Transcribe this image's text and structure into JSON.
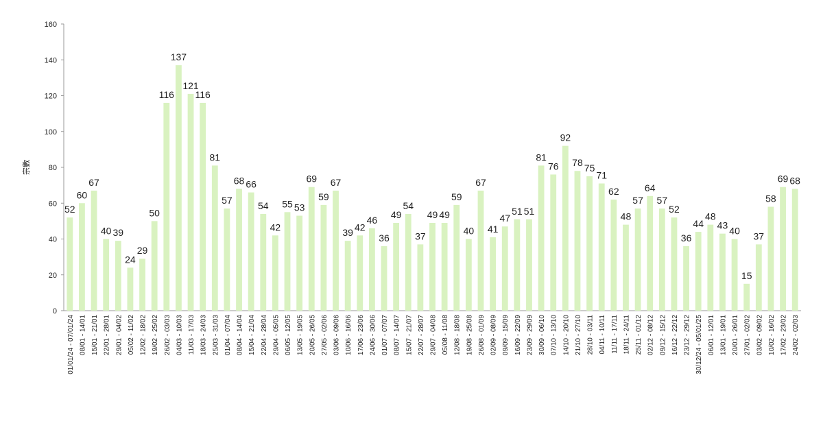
{
  "chart_data": {
    "type": "bar",
    "y_label": "宗數",
    "categories": [
      "01/01/24 - 07/01/24",
      "08/01 - 14/01",
      "15/01 - 21/01",
      "22/01 - 28/01",
      "29/01 - 04/02",
      "05/02 - 11/02",
      "12/02 - 18/02",
      "19/02 - 25/02",
      "26/02 - 03/03",
      "04/03 - 10/03",
      "11/03 - 17/03",
      "18/03 - 24/03",
      "25/03 - 31/03",
      "01/04 - 07/04",
      "08/04 - 14/04",
      "15/04 - 21/04",
      "22/04 - 28/04",
      "29/04 - 05/05",
      "06/05 - 12/05",
      "13/05 - 19/05",
      "20/05 - 26/05",
      "27/05 - 02/06",
      "03/06 - 09/06",
      "10/06 - 16/06",
      "17/06 - 23/06",
      "24/06 - 30/06",
      "01/07 - 07/07",
      "08/07 - 14/07",
      "15/07 - 21/07",
      "22/07 - 28/07",
      "29/07 - 04/08",
      "05/08 - 11/08",
      "12/08 - 18/08",
      "19/08 - 25/08",
      "26/08 - 01/09",
      "02/09 - 08/09",
      "09/09 - 15/09",
      "16/09 - 22/09",
      "23/09 - 29/09",
      "30/09 - 06/10",
      "07/10 - 13/10",
      "14/10 - 20/10",
      "21/10 - 27/10",
      "28/10 - 03/11",
      "04/11 - 10/11",
      "11/11 - 17/11",
      "18/11 - 24/11",
      "25/11 - 01/12",
      "02/12 - 08/12",
      "09/12 - 15/12",
      "16/12 - 22/12",
      "23/12 - 29/12",
      "30/12/24 - 05/01/25",
      "06/01 - 12/01",
      "13/01 - 19/01",
      "20/01 - 26/01",
      "27/01 - 02/02",
      "03/02 - 09/02",
      "10/02 - 16/02",
      "17/02 - 23/02",
      "24/02 - 02/03"
    ],
    "values": [
      52,
      60,
      67,
      40,
      39,
      24,
      29,
      50,
      116,
      137,
      121,
      116,
      81,
      57,
      68,
      66,
      54,
      42,
      55,
      53,
      69,
      59,
      67,
      39,
      42,
      46,
      36,
      49,
      54,
      37,
      49,
      49,
      59,
      40,
      67,
      41,
      47,
      51,
      51,
      81,
      76,
      92,
      78,
      75,
      71,
      62,
      48,
      57,
      64,
      57,
      52,
      36,
      44,
      48,
      43,
      40,
      15,
      37,
      58,
      69,
      68
    ],
    "color": "#d9f2c0",
    "ylim": [
      0,
      160
    ],
    "yticks": [
      0,
      20,
      40,
      60,
      80,
      100,
      120,
      140,
      160
    ]
  }
}
